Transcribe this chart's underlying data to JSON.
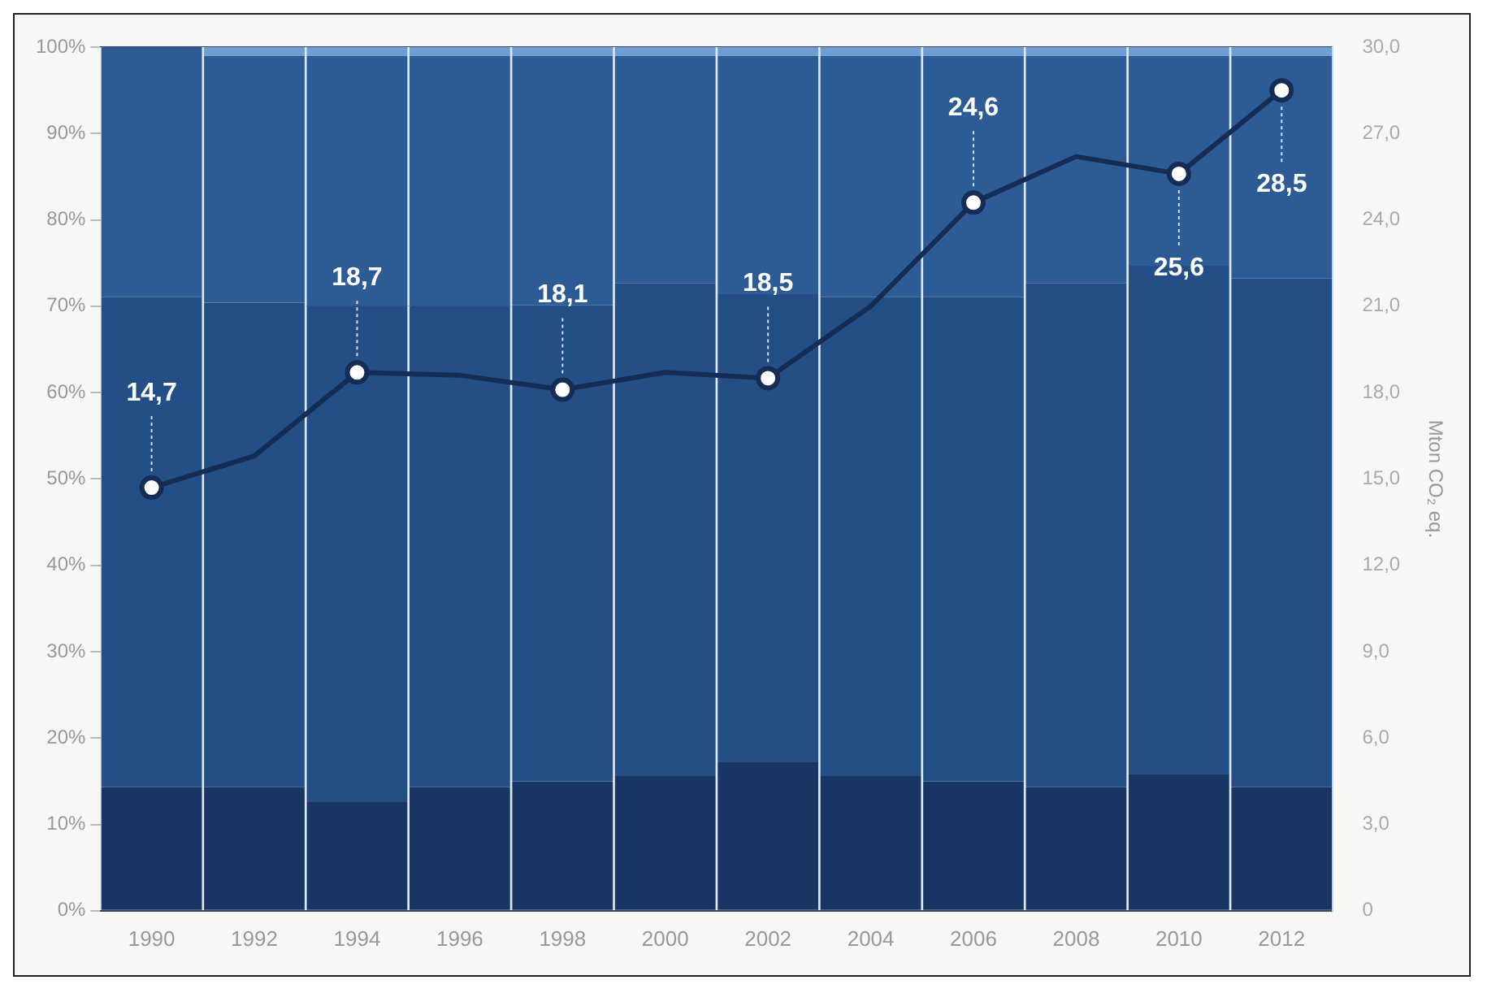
{
  "chart_data": {
    "type": "bar",
    "stacked": true,
    "categories": [
      "1990",
      "1992",
      "1994",
      "1996",
      "1998",
      "2000",
      "2002",
      "2004",
      "2006",
      "2008",
      "2010",
      "2012"
    ],
    "series": [
      {
        "color": "#193564",
        "values": [
          14.3,
          14.3,
          12.6,
          14.3,
          15.0,
          15.6,
          17.2,
          15.6,
          15.0,
          14.3,
          15.8,
          14.3
        ]
      },
      {
        "color": "#244f86",
        "values": [
          56.8,
          56.1,
          57.4,
          55.7,
          55.1,
          57.1,
          54.2,
          55.5,
          56.1,
          58.4,
          58.9,
          58.9
        ]
      },
      {
        "color": "#2d5b95",
        "values": [
          28.9,
          28.6,
          29.0,
          29.0,
          28.9,
          26.3,
          27.6,
          27.9,
          27.9,
          26.3,
          24.3,
          25.8
        ]
      },
      {
        "color": "#6f9fd2",
        "values": [
          0,
          1,
          1,
          1,
          1,
          1,
          1,
          1,
          1,
          1,
          1,
          1
        ]
      },
      {
        "type": "line",
        "axis": "y2",
        "color": "#152d55",
        "marker": "circle",
        "values": [
          14.7,
          15.8,
          18.7,
          18.6,
          18.1,
          18.7,
          18.5,
          21.0,
          24.6,
          26.2,
          25.6,
          28.5
        ],
        "value_labels": [
          "14,7",
          null,
          "18,7",
          null,
          "18,1",
          null,
          "18,5",
          null,
          "24,6",
          null,
          "25,6",
          "28,5"
        ]
      }
    ],
    "ylim": [
      0,
      100
    ],
    "yticks": [
      {
        "value": 0,
        "label": "0%"
      },
      {
        "value": 10,
        "label": "10%"
      },
      {
        "value": 20,
        "label": "20%"
      },
      {
        "value": 30,
        "label": "30%"
      },
      {
        "value": 40,
        "label": "40%"
      },
      {
        "value": 50,
        "label": "50%"
      },
      {
        "value": 60,
        "label": "60%"
      },
      {
        "value": 70,
        "label": "70%"
      },
      {
        "value": 80,
        "label": "80%"
      },
      {
        "value": 90,
        "label": "90%"
      },
      {
        "value": 100,
        "label": "100%"
      }
    ],
    "y2lim": [
      0,
      30
    ],
    "y2ticks": [
      0,
      {
        "value": 3,
        "label": "3,0"
      },
      {
        "value": 6,
        "label": "6,0"
      },
      {
        "value": 9,
        "label": "9,0"
      },
      {
        "value": 12,
        "label": "12,0"
      },
      {
        "value": 15,
        "label": "15,0"
      },
      {
        "value": 18,
        "label": "18,0"
      },
      {
        "value": 21,
        "label": "21,0"
      },
      {
        "value": 24,
        "label": "24,0"
      },
      {
        "value": 27,
        "label": "27,0"
      },
      {
        "value": 30,
        "label": "30,0"
      }
    ],
    "y2label": "Mton CO₂ eq.",
    "grid": "y",
    "legend": false
  }
}
